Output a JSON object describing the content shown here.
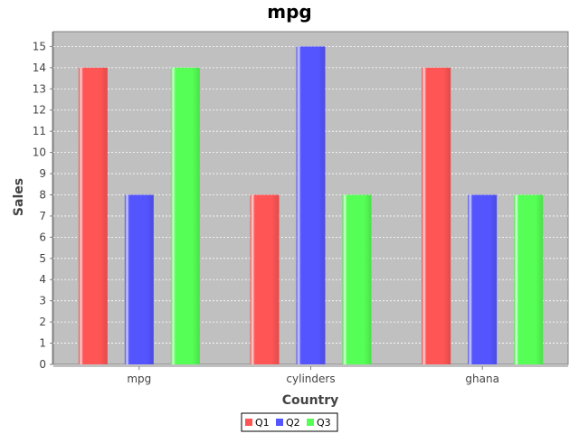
{
  "chart_data": {
    "type": "bar",
    "title": "mpg",
    "xlabel": "Country",
    "ylabel": "Sales",
    "categories": [
      "mpg",
      "cylinders",
      "ghana"
    ],
    "series": [
      {
        "name": "Q1",
        "values": [
          14,
          8,
          14
        ],
        "color": "#ff5555"
      },
      {
        "name": "Q2",
        "values": [
          8,
          15,
          8
        ],
        "color": "#5555ff"
      },
      {
        "name": "Q3",
        "values": [
          14,
          8,
          8
        ],
        "color": "#55ff55"
      }
    ],
    "ylim": [
      0,
      15.7
    ],
    "yticks": [
      0,
      1,
      2,
      3,
      4,
      5,
      6,
      7,
      8,
      9,
      10,
      11,
      12,
      13,
      14,
      15
    ],
    "grid": true,
    "legend_position": "bottom",
    "plot_background": "#c0c0c0"
  }
}
